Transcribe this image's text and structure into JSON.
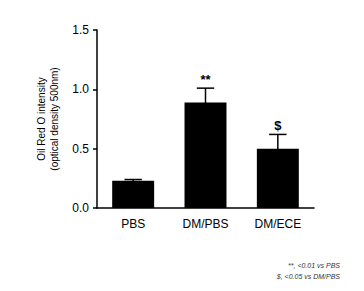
{
  "chart_data": {
    "type": "bar",
    "categories": [
      "PBS",
      "DM/PBS",
      "DM/ECE"
    ],
    "values": [
      0.23,
      0.89,
      0.5
    ],
    "errors": [
      0.01,
      0.12,
      0.12
    ],
    "significance": [
      null,
      "**",
      "$"
    ],
    "color": "#000000",
    "y_label": "Oil Red O intensity\n(optical density 500nm)",
    "ylim": [
      0,
      1.5
    ],
    "yticks": [
      {
        "value": 0,
        "label": "0.0"
      },
      0.5,
      {
        "value": 1,
        "label": "1.0"
      },
      1.5
    ],
    "grid": false,
    "notes": [
      "**, <0.01 vs PBS",
      "$, <0.05 vs DM/PBS"
    ]
  }
}
